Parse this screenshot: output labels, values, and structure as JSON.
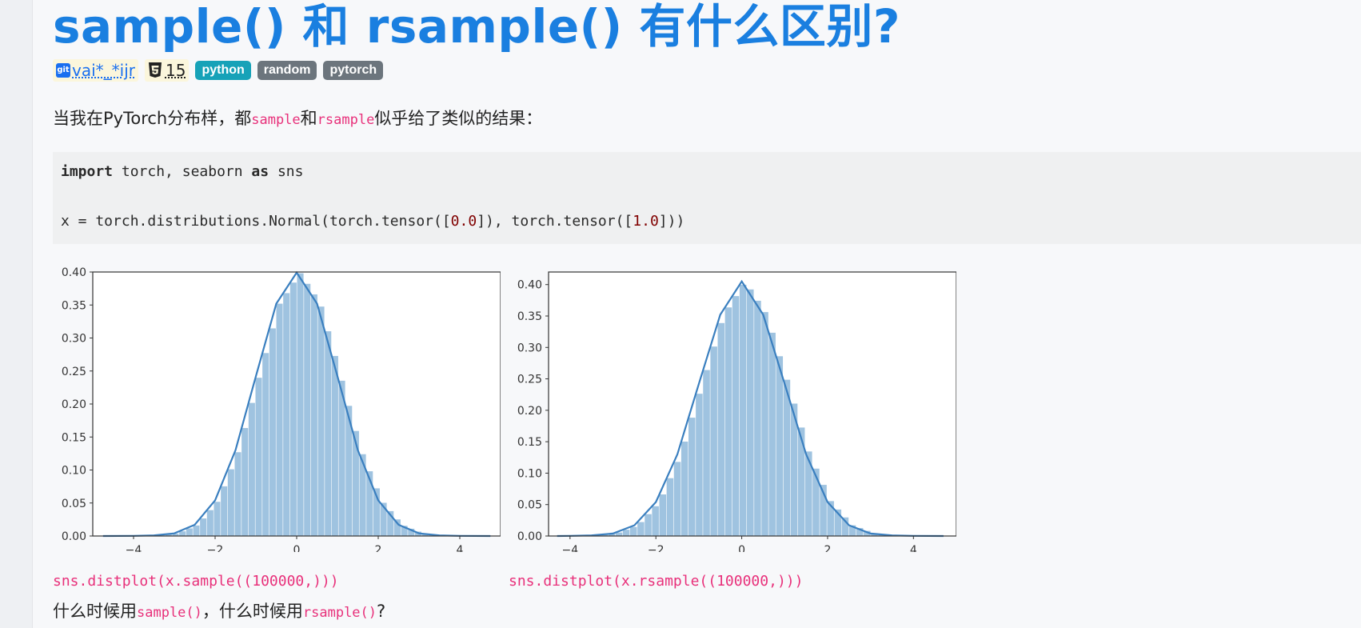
{
  "title": "sample() 和 rsample() 有什么区别?",
  "meta": {
    "git_icon_text": "git",
    "author": "vai*_*ijr",
    "score": "15",
    "tags": [
      "python",
      "random",
      "pytorch"
    ]
  },
  "question": {
    "prefix": "当我在PyTorch分布样，都",
    "code1": "sample",
    "mid": "和",
    "code2": "rsample",
    "suffix": "似乎给了类似的结果："
  },
  "code": {
    "line1_kw1": "import",
    "line1_mid": " torch, seaborn ",
    "line1_kw2": "as",
    "line1_end": " sns",
    "line2_a": "x = torch.distributions.Normal(torch.tensor([",
    "line2_n1": "0.0",
    "line2_b": "]), torch.tensor([",
    "line2_n2": "1.0",
    "line2_c": "]))"
  },
  "captions": {
    "left": "sns.distplot(x.sample((100000,)))",
    "right": "sns.distplot(x.rsample((100000,)))"
  },
  "final_question": {
    "prefix": "什么时候用",
    "code1": "sample()",
    "mid": "，什么时候用",
    "code2": "rsample()",
    "suffix": "?"
  },
  "chart_data": [
    {
      "type": "area",
      "xlim": [
        -5,
        5
      ],
      "ylim": [
        0,
        0.4
      ],
      "xticks": [
        -4,
        -2,
        0,
        2,
        4
      ],
      "yticks": [
        "0.00",
        "0.05",
        "0.10",
        "0.15",
        "0.20",
        "0.25",
        "0.30",
        "0.35",
        "0.40"
      ],
      "x": [
        -4.75,
        -4,
        -3.5,
        -3,
        -2.5,
        -2,
        -1.5,
        -1,
        -0.5,
        0,
        0.5,
        1,
        1.5,
        2,
        2.5,
        3,
        3.5,
        4,
        4.75
      ],
      "y": [
        0.0,
        0.0003,
        0.001,
        0.004,
        0.017,
        0.054,
        0.13,
        0.242,
        0.352,
        0.399,
        0.352,
        0.242,
        0.13,
        0.054,
        0.017,
        0.004,
        0.001,
        0.0003,
        0.0
      ],
      "colors": {
        "fill": "#9fc3e0",
        "line": "#3a7fbf"
      }
    },
    {
      "type": "area",
      "xlim": [
        -4.5,
        5
      ],
      "ylim": [
        0,
        0.42
      ],
      "xticks": [
        -4,
        -2,
        0,
        2,
        4
      ],
      "yticks": [
        "0.00",
        "0.05",
        "0.10",
        "0.15",
        "0.20",
        "0.25",
        "0.30",
        "0.35",
        "0.40"
      ],
      "x": [
        -4.3,
        -4,
        -3.5,
        -3,
        -2.5,
        -2,
        -1.5,
        -1,
        -0.5,
        0,
        0.5,
        1,
        1.5,
        2,
        2.5,
        3,
        3.5,
        4,
        4.7
      ],
      "y": [
        0.0,
        0.0003,
        0.001,
        0.004,
        0.017,
        0.054,
        0.13,
        0.242,
        0.352,
        0.405,
        0.352,
        0.242,
        0.13,
        0.054,
        0.017,
        0.004,
        0.001,
        0.0003,
        0.0
      ],
      "colors": {
        "fill": "#9fc3e0",
        "line": "#3a7fbf"
      }
    }
  ]
}
